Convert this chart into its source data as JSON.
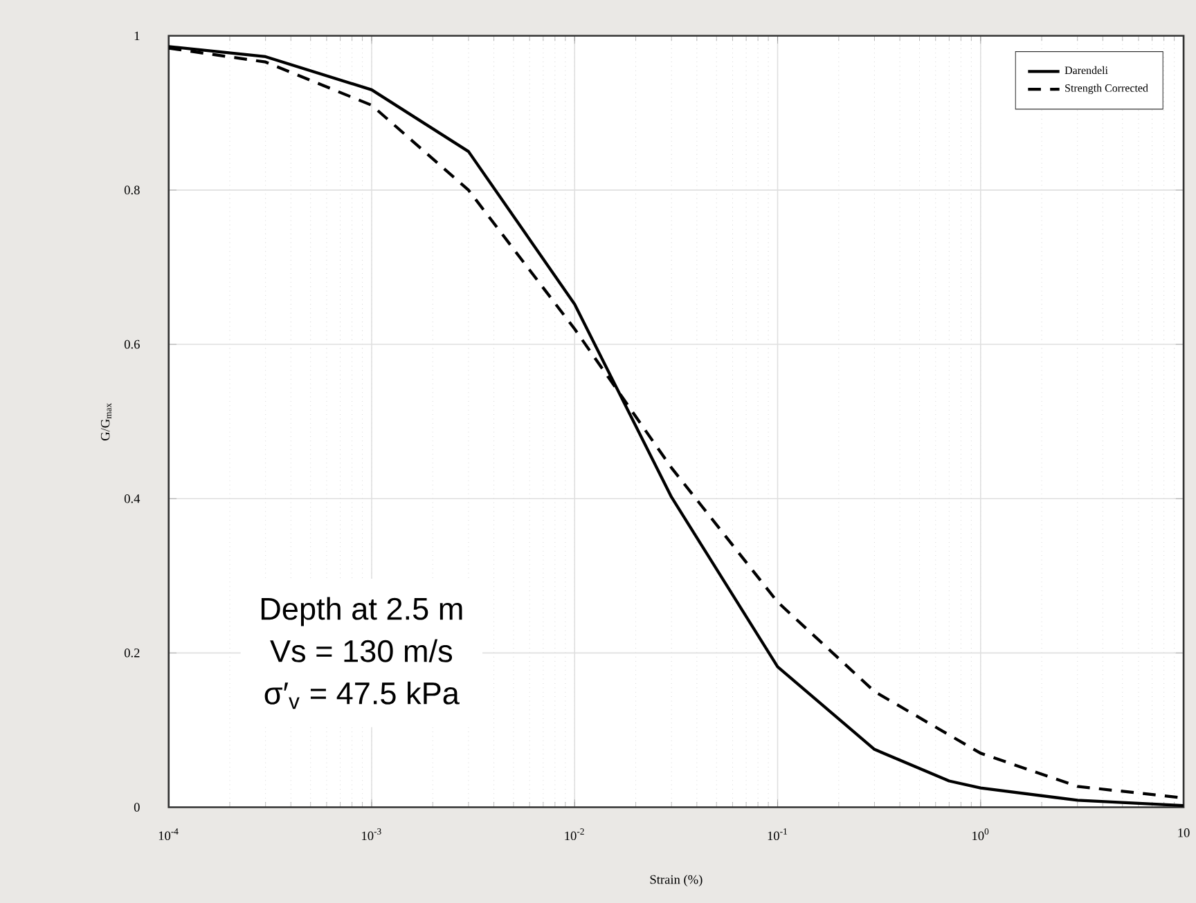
{
  "chart_data": {
    "type": "line",
    "xlabel": "Strain (%)",
    "ylabel": "G/G$_{max}$",
    "log": "x",
    "xlim": [
      0.0001,
      10
    ],
    "ylim": [
      0,
      1
    ],
    "xticks": [
      {
        "value": 0.0001,
        "label": "10$^{-4}$"
      },
      {
        "value": 0.001,
        "label": "10$^{-3}$"
      },
      {
        "value": 0.01,
        "label": "10$^{-2}$"
      },
      {
        "value": 0.1,
        "label": "10$^{-1}$"
      },
      {
        "value": 1,
        "label": "10$^{0}$"
      },
      {
        "value": 10,
        "label": "10"
      }
    ],
    "yticks": [
      0,
      0.2,
      0.4,
      0.6,
      0.8,
      1
    ],
    "grid": true,
    "legend": "top right",
    "series": [
      {
        "name": "Darendeli",
        "color": "#000000",
        "line_style": "solid",
        "x": [
          0.0001,
          0.0003,
          0.001,
          0.003,
          0.01,
          0.03,
          0.1,
          0.3,
          0.7,
          1,
          3,
          10
        ],
        "values": [
          0.986,
          0.973,
          0.93,
          0.85,
          0.652,
          0.402,
          0.182,
          0.075,
          0.034,
          0.025,
          0.009,
          0.002
        ]
      },
      {
        "name": "Strength Corrected",
        "color": "#000000",
        "line_style": "dashed",
        "x": [
          0.0001,
          0.0003,
          0.001,
          0.003,
          0.01,
          0.03,
          0.1,
          0.3,
          1,
          3,
          10
        ],
        "values": [
          0.984,
          0.966,
          0.91,
          0.8,
          0.62,
          0.44,
          0.266,
          0.15,
          0.07,
          0.027,
          0.012
        ]
      }
    ],
    "annotations": [
      "Depth at 2.5 m",
      "Vs = 130 m/s",
      "σ′$_{v}$ = 47.5 kPa"
    ]
  }
}
